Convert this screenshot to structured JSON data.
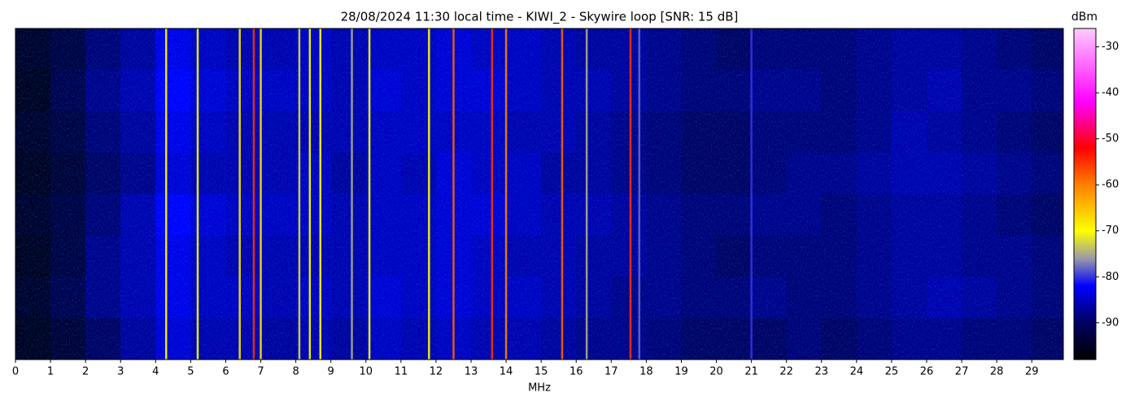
{
  "chart_data": {
    "type": "heatmap",
    "title": "28/08/2024 11:30 local time - KIWI_2 - Skywire loop [SNR: 15 dB]",
    "xlabel": "MHz",
    "colorbar_label": "dBm",
    "xlim": [
      0,
      29.9
    ],
    "xticks": [
      0,
      1,
      2,
      3,
      4,
      5,
      6,
      7,
      8,
      9,
      10,
      11,
      12,
      13,
      14,
      15,
      16,
      17,
      18,
      19,
      20,
      21,
      22,
      23,
      24,
      25,
      26,
      27,
      28,
      29
    ],
    "clim": [
      -98,
      -26
    ],
    "cticks": [
      -30,
      -40,
      -50,
      -60,
      -70,
      -80,
      -90
    ],
    "colormap": [
      {
        "value": -98,
        "color": "#000000"
      },
      {
        "value": -90,
        "color": "#000060"
      },
      {
        "value": -82,
        "color": "#0000ff"
      },
      {
        "value": -76,
        "color": "#9a9aa8"
      },
      {
        "value": -70,
        "color": "#ffff00"
      },
      {
        "value": -60,
        "color": "#ff8000"
      },
      {
        "value": -52,
        "color": "#ff0000"
      },
      {
        "value": -42,
        "color": "#ff00ff"
      },
      {
        "value": -26,
        "color": "#ffccff"
      }
    ],
    "bins": [
      0,
      1,
      2,
      3,
      4,
      5,
      6,
      7,
      8,
      9,
      10,
      11,
      12,
      13,
      14,
      15,
      16,
      17,
      18,
      19,
      20,
      21,
      22,
      23,
      24,
      25,
      26,
      27,
      28,
      29,
      30
    ],
    "z": [
      [
        -95,
        -93,
        -89,
        -87,
        -83,
        -85,
        -86,
        -86,
        -85,
        -86,
        -85,
        -85,
        -84,
        -85,
        -85,
        -86,
        -87,
        -87,
        -88,
        -89,
        -90,
        -89,
        -89,
        -89,
        -88,
        -87,
        -87,
        -88,
        -89,
        -90
      ],
      [
        -96,
        -92,
        -88,
        -86,
        -82,
        -84,
        -85,
        -85,
        -85,
        -86,
        -84,
        -85,
        -84,
        -84,
        -85,
        -86,
        -86,
        -87,
        -88,
        -89,
        -89,
        -88,
        -88,
        -89,
        -88,
        -87,
        -86,
        -88,
        -88,
        -89
      ],
      [
        -95,
        -93,
        -89,
        -87,
        -83,
        -85,
        -86,
        -86,
        -86,
        -86,
        -85,
        -85,
        -85,
        -85,
        -86,
        -86,
        -87,
        -88,
        -89,
        -90,
        -90,
        -89,
        -89,
        -89,
        -88,
        -86,
        -87,
        -88,
        -89,
        -90
      ],
      [
        -96,
        -94,
        -90,
        -88,
        -84,
        -86,
        -86,
        -86,
        -85,
        -87,
        -85,
        -86,
        -84,
        -85,
        -85,
        -87,
        -87,
        -88,
        -89,
        -90,
        -90,
        -89,
        -88,
        -88,
        -87,
        -86,
        -86,
        -87,
        -88,
        -89
      ],
      [
        -95,
        -93,
        -89,
        -86,
        -82,
        -84,
        -85,
        -85,
        -85,
        -86,
        -85,
        -85,
        -84,
        -84,
        -85,
        -86,
        -86,
        -87,
        -88,
        -89,
        -89,
        -88,
        -88,
        -89,
        -88,
        -87,
        -87,
        -88,
        -89,
        -90
      ],
      [
        -96,
        -93,
        -88,
        -86,
        -83,
        -85,
        -86,
        -86,
        -86,
        -86,
        -85,
        -85,
        -84,
        -85,
        -86,
        -86,
        -87,
        -87,
        -88,
        -89,
        -90,
        -89,
        -89,
        -89,
        -88,
        -87,
        -87,
        -88,
        -88,
        -89
      ],
      [
        -95,
        -92,
        -88,
        -86,
        -83,
        -85,
        -85,
        -86,
        -85,
        -86,
        -84,
        -85,
        -84,
        -85,
        -85,
        -86,
        -87,
        -88,
        -88,
        -89,
        -89,
        -88,
        -89,
        -89,
        -88,
        -87,
        -86,
        -87,
        -88,
        -89
      ],
      [
        -96,
        -94,
        -90,
        -87,
        -84,
        -86,
        -86,
        -87,
        -86,
        -87,
        -85,
        -86,
        -85,
        -86,
        -86,
        -87,
        -88,
        -88,
        -89,
        -90,
        -90,
        -90,
        -89,
        -90,
        -89,
        -88,
        -88,
        -89,
        -89,
        -90
      ]
    ],
    "signals": {
      "freq": [
        4.3,
        5.2,
        6.4,
        6.8,
        7.0,
        8.1,
        8.4,
        8.7,
        9.6,
        10.1,
        11.8,
        12.5,
        13.6,
        14.0,
        15.6,
        16.3,
        17.55,
        17.8,
        21.0
      ],
      "level": [
        -70,
        -70,
        -68,
        -55,
        -68,
        -72,
        -70,
        -70,
        -75,
        -70,
        -70,
        -58,
        -55,
        -60,
        -58,
        -75,
        -55,
        -78,
        -80
      ]
    }
  }
}
